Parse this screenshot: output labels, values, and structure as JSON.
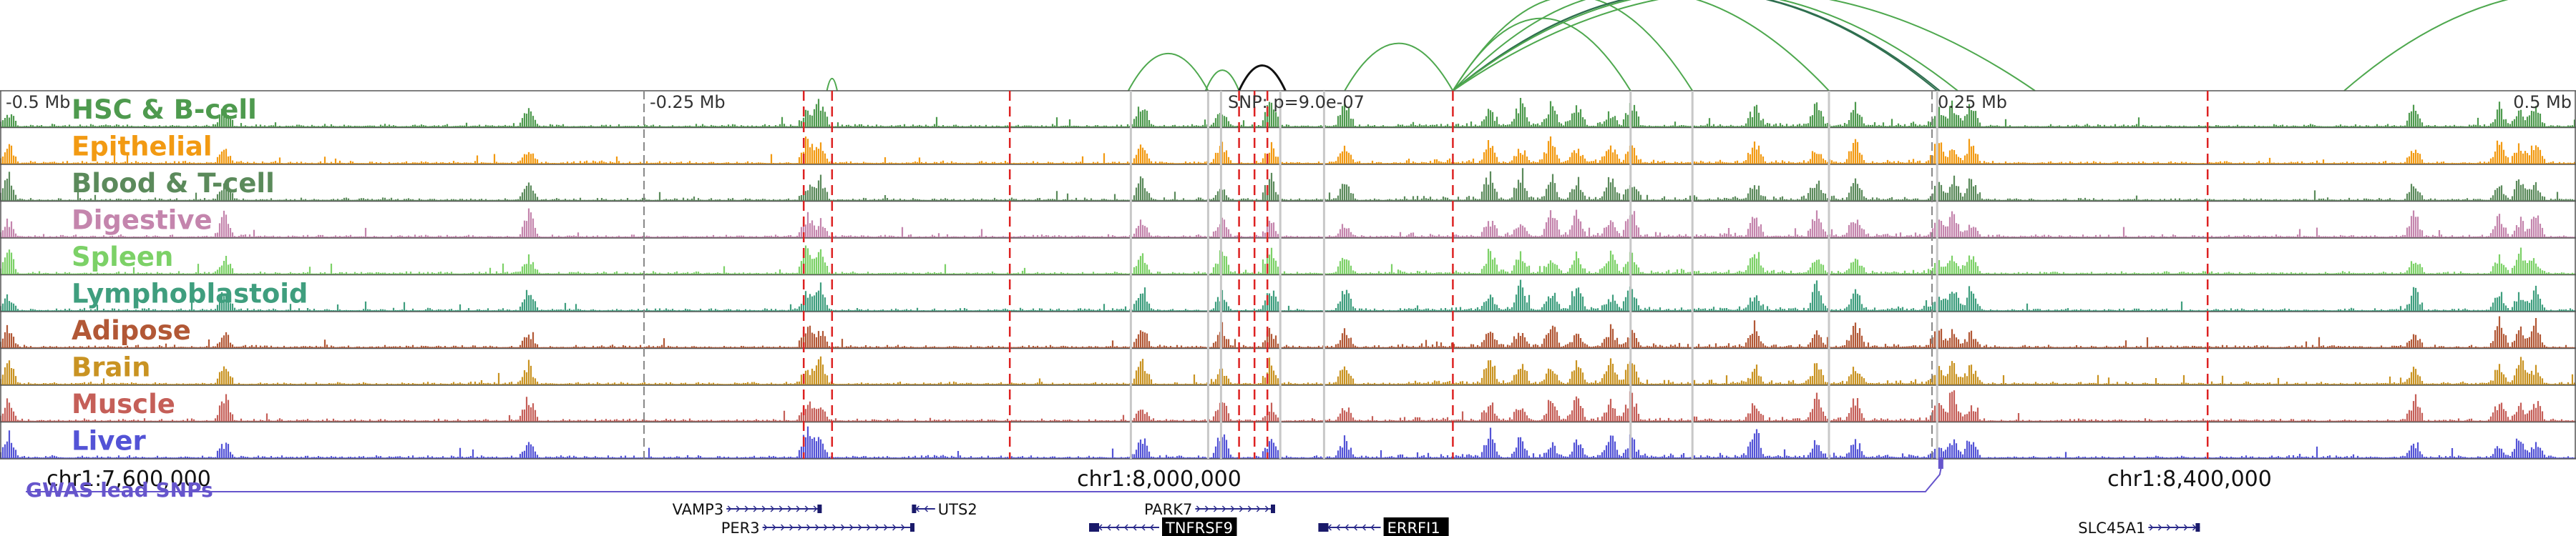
{
  "chart_data": {
    "type": "genome-browser",
    "chromosome": "chr1",
    "window_bp": [
      7550000,
      8550000
    ],
    "scale_labels": [
      {
        "pos": 7550000,
        "text": "-0.5 Mb"
      },
      {
        "pos": 7800000,
        "text": "-0.25 Mb"
      },
      {
        "pos": 8300000,
        "text": "0.25 Mb"
      },
      {
        "pos": 8550000,
        "text": "0.5 Mb"
      }
    ],
    "snp_label": {
      "pos": 8025000,
      "text": "SNP: p=9.0e-07"
    },
    "coordinate_labels": [
      {
        "pos": 7600000,
        "text": "chr1:7,600,000"
      },
      {
        "pos": 8000000,
        "text": "chr1:8,000,000"
      },
      {
        "pos": 8400000,
        "text": "chr1:8,400,000"
      }
    ],
    "tracks": [
      {
        "name": "HSC & B-cell",
        "color": "#4e9a4e"
      },
      {
        "name": "Epithelial",
        "color": "#f29a12"
      },
      {
        "name": "Blood & T-cell",
        "color": "#5b8a5b"
      },
      {
        "name": "Digestive",
        "color": "#c485ad"
      },
      {
        "name": "Spleen",
        "color": "#7cd167"
      },
      {
        "name": "Lymphoblastoid",
        "color": "#3f9e7e"
      },
      {
        "name": "Adipose",
        "color": "#b25836"
      },
      {
        "name": "Brain",
        "color": "#c99322"
      },
      {
        "name": "Muscle",
        "color": "#c55f58"
      },
      {
        "name": "Liver",
        "color": "#5353d6"
      }
    ],
    "peak_hotspots_bp": [
      7553000,
      7637000,
      7755000,
      7863000,
      7868000,
      7993000,
      8024000,
      8043000,
      8072000,
      8128000,
      8140000,
      8152000,
      8162000,
      8175000,
      8183000,
      8231000,
      8255000,
      8270000,
      8302000,
      8308000,
      8315000,
      8487000,
      8520000,
      8528000,
      8534000
    ],
    "red_dashed_lines_bp": [
      7862000,
      7873000,
      7942000,
      8031000,
      8037000,
      8042000,
      8114000,
      8407000
    ],
    "gray_lines_bp": [
      7989000,
      8019000,
      8024000,
      8047000,
      8064000,
      8183000,
      8207000,
      8260000,
      8302000
    ],
    "dark_gray_dashed_lines_bp": [
      7800000,
      8300000
    ],
    "arcs": [
      {
        "from": 7988000,
        "to": 8019000,
        "color": "#4ea84e"
      },
      {
        "from": 8018000,
        "to": 8031000,
        "color": "#4ea84e"
      },
      {
        "from": 8031000,
        "to": 8049000,
        "color": "#111111"
      },
      {
        "from": 8072000,
        "to": 8114000,
        "color": "#4ea84e"
      },
      {
        "from": 8114000,
        "to": 8183000,
        "color": "#4ea84e"
      },
      {
        "from": 8114000,
        "to": 8207000,
        "color": "#4ea84e"
      },
      {
        "from": 8114000,
        "to": 8260000,
        "color": "#4ea84e"
      },
      {
        "from": 8114000,
        "to": 8302000,
        "color": "#2f6f4f"
      },
      {
        "from": 8114000,
        "to": 8303000,
        "color": "#2f6f4f"
      },
      {
        "from": 8114000,
        "to": 8310000,
        "color": "#4ea84e"
      },
      {
        "from": 8114000,
        "to": 8340000,
        "color": "#4ea84e"
      },
      {
        "from": 8460000,
        "to": 8640000,
        "color": "#4ea84e"
      },
      {
        "from": 7871000,
        "to": 7875000,
        "color": "#4ea84e"
      }
    ],
    "gwas": {
      "label": "GWAS lead SNPs",
      "color": "#6655cc",
      "range_bp": [
        7560000,
        8303000
      ]
    },
    "genes": [
      {
        "name": "VAMP3",
        "start": 7832000,
        "end": 7869000,
        "strand": "+",
        "row": 0,
        "label_side": "left"
      },
      {
        "name": "PER3",
        "start": 7846000,
        "end": 7905000,
        "strand": "+",
        "row": 1,
        "label_side": "left"
      },
      {
        "name": "UTS2",
        "start": 7904000,
        "end": 7913000,
        "strand": "-",
        "row": 0,
        "label_side": "right"
      },
      {
        "name": "PARK7",
        "start": 8014000,
        "end": 8045000,
        "strand": "+",
        "row": 0,
        "label_side": "left"
      },
      {
        "name": "TNFRSF9",
        "start": 7975000,
        "end": 8000000,
        "strand": "-",
        "row": 1,
        "label_side": "right",
        "highlight": true
      },
      {
        "name": "ERRFI1",
        "start": 8064000,
        "end": 8086000,
        "strand": "-",
        "row": 1,
        "label_side": "right",
        "highlight": true
      },
      {
        "name": "SLC45A1",
        "start": 8384000,
        "end": 8404000,
        "strand": "+",
        "row": 1,
        "label_side": "left"
      }
    ]
  }
}
